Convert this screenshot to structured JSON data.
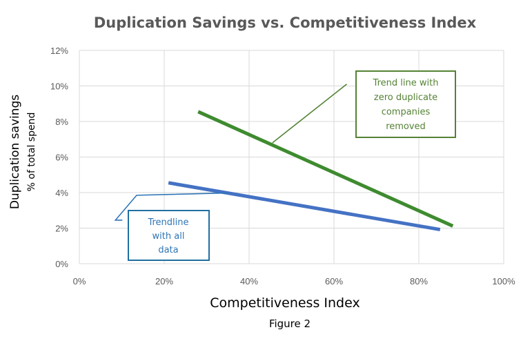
{
  "chart_data": {
    "type": "line",
    "title": "Duplication Savings  vs. Competitiveness Index",
    "xlabel": "Competitiveness Index",
    "ylabel": "Duplication savings",
    "ylabel_sub": "% of total spend",
    "caption": "Figure 2",
    "xlim": [
      0,
      1
    ],
    "ylim": [
      0,
      0.12
    ],
    "x_ticks": [
      0,
      0.2,
      0.4,
      0.6,
      0.8,
      1.0
    ],
    "x_tick_labels": [
      "0%",
      "20%",
      "40%",
      "60%",
      "80%",
      "100%"
    ],
    "y_ticks": [
      0,
      0.02,
      0.04,
      0.06,
      0.08,
      0.1,
      0.12
    ],
    "y_tick_labels": [
      "0%",
      "2%",
      "4%",
      "6%",
      "8%",
      "10%",
      "12%"
    ],
    "grid": true,
    "series": [
      {
        "name": "Trendline with all data",
        "color": "#4472c4",
        "x": [
          0.21,
          0.85
        ],
        "y": [
          0.0455,
          0.0192
        ]
      },
      {
        "name": "Trend line with zero duplicate companies removed",
        "color": "#3e8b2f",
        "x": [
          0.28,
          0.88
        ],
        "y": [
          0.0855,
          0.0212
        ]
      }
    ],
    "annotations": [
      {
        "series": 1,
        "lines": [
          "Trend line with",
          "zero duplicate",
          "companies",
          "removed"
        ],
        "color": "#548235",
        "points_to": [
          0.455,
          0.068
        ],
        "bend": [
          0.63,
          0.101
        ]
      },
      {
        "series": 0,
        "lines": [
          "Trendline",
          "with all",
          "data"
        ],
        "color": "#2e75b6",
        "points_to": [
          0.35,
          0.0398
        ],
        "bend": [
          0.135,
          0.0385
        ],
        "tail": [
          0.085,
          0.0245
        ]
      }
    ]
  }
}
